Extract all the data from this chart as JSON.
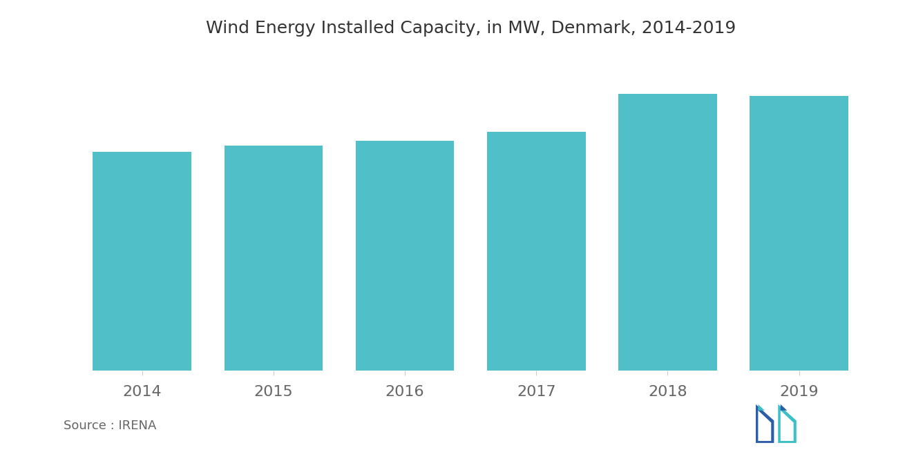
{
  "title": "Wind Energy Installed Capacity, in MW, Denmark, 2014-2019",
  "categories": [
    "2014",
    "2015",
    "2016",
    "2017",
    "2018",
    "2019"
  ],
  "values": [
    4845,
    4975,
    5080,
    5280,
    6120,
    6080
  ],
  "bar_color": "#50BFC8",
  "background_color": "#ffffff",
  "title_fontsize": 18,
  "tick_fontsize": 16,
  "source_text": "Source : IRENA",
  "source_fontsize": 13,
  "ylim": [
    0,
    7000
  ],
  "bar_width": 0.75,
  "logo_dark_blue": "#2B5EA7",
  "logo_teal": "#3DBFC8"
}
